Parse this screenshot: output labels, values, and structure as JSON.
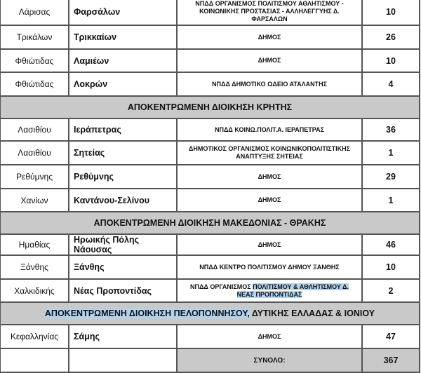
{
  "rows": [
    {
      "type": "row",
      "region": "Λάρισας",
      "municipality": "Φαρσάλων",
      "entity": "ΝΠΔΔ ΟΡΓΑΝΙΣΜΟΣ ΠΟΛΙΤΙΣΜΟΥ ΑΘΛΗΤΙΣΜΟΥ - ΚΟΙΝΩΝΙΚΗΣ ΠΡΟΣΤΑΣΙΑΣ - ΑΛΛΗΛΕΓΓΥΗΣ Δ. ΦΑΡΣΑΛΩΝ",
      "count": "10"
    },
    {
      "type": "row",
      "region": "Τρικάλων",
      "municipality": "Τρικκαίων",
      "entity": "ΔΗΜΟΣ",
      "count": "26"
    },
    {
      "type": "row",
      "region": "Φθιώτιδας",
      "municipality": "Λαμιέων",
      "entity": "ΔΗΜΟΣ",
      "count": "10"
    },
    {
      "type": "row",
      "region": "Φθιώτιδας",
      "municipality": "Λοκρών",
      "entity": "ΝΠΔΔ ΔΗΜΟΤΙΚΟ ΩΔΕΙΟ ΑΤΑΛΑΝΤΗΣ",
      "count": "4"
    },
    {
      "type": "header",
      "title": "ΑΠΟΚΕΝΤΡΩΜΕΝΗ ΔΙΟΙΚΗΣΗ ΚΡΗΤΗΣ"
    },
    {
      "type": "row",
      "region": "Λασιθίου",
      "municipality": "Ιεράπετρας",
      "entity": "ΝΠΔΔ ΚΟΙΝΩ.ΠΟΛΙΤ.Α. ΙΕΡΑΠΕΤΡΑΣ",
      "count": "36"
    },
    {
      "type": "row",
      "region": "Λασιθίου",
      "municipality": "Σητείας",
      "entity": "ΔΗΜΟΤΙΚΟΣ ΟΡΓΑΝΙΣΜΟΣ ΚΟΙΝΩΝΙΚΟΠΟΛΙΤΙΣΤΙΚΗΣ ΑΝΑΠΤΥΞΗΣ ΣΗΤΕΙΑΣ",
      "count": "1"
    },
    {
      "type": "row",
      "region": "Ρεθύμνης",
      "municipality": "Ρεθύμνης",
      "entity": "ΔΗΜΟΣ",
      "count": "29"
    },
    {
      "type": "row",
      "region": "Χανίων",
      "municipality": "Καντάνου-Σελίνου",
      "entity": "ΔΗΜΟΣ",
      "count": "1"
    },
    {
      "type": "header",
      "title": "ΑΠΟΚΕΝΤΡΩΜΕΝΗ ΔΙΟΙΚΗΣΗ ΜΑΚΕΔΟΝΙΑΣ - ΘΡΑΚΗΣ"
    },
    {
      "type": "row",
      "region": "Ημαθίας",
      "municipality": "Ηρωικής Πόλης Νάουσας",
      "entity": "ΔΗΜΟΣ",
      "count": "46"
    },
    {
      "type": "row",
      "region": "Ξάνθης",
      "municipality": "Ξάνθης",
      "entity": "ΝΠΔΔ ΚΕΝΤΡΟ ΠΟΛΙΤΙΣΜΟΥ ΔΗΜΟΥ ΞΑΝΘΗΣ",
      "count": "10"
    },
    {
      "type": "row",
      "region": "Χαλκιδικής",
      "municipality": "Νέας Προποντίδας",
      "entity_plain": "ΝΠΔΔ ΟΡΓΑΝΙΣΜΟΣ ",
      "entity_highlighted": "ΠΟΛΙΤΙΣΜΟΥ & ΑΘΛΗΤΙΣΜΟΥ Δ. ΝΕΑΣ ΠΡΟΠΟΝΤΙΔΑΣ",
      "count": "2"
    },
    {
      "type": "header",
      "title_highlighted": "ΑΠΟΚΕΝΤΡΩΜΕΝΗ ΔΙΟΙΚΗΣΗ ΠΕΛΟΠΟΝΝΗΣΟΥ,",
      "title_plain": " ΔΥΤΙΚΗΣ ΕΛΛΑΔΑΣ & ΙΟΝΙΟΥ"
    },
    {
      "type": "row",
      "region": "Κεφαλληνίας",
      "municipality": "Σάμης",
      "entity": "ΔΗΜΟΣ",
      "count": "47"
    }
  ],
  "total": {
    "label": "ΣΥΝΟΛΟ:",
    "value": "367"
  },
  "colors": {
    "header_bg": "#c9c9c9",
    "selection": "#b3d3ee",
    "border": "#555555"
  }
}
